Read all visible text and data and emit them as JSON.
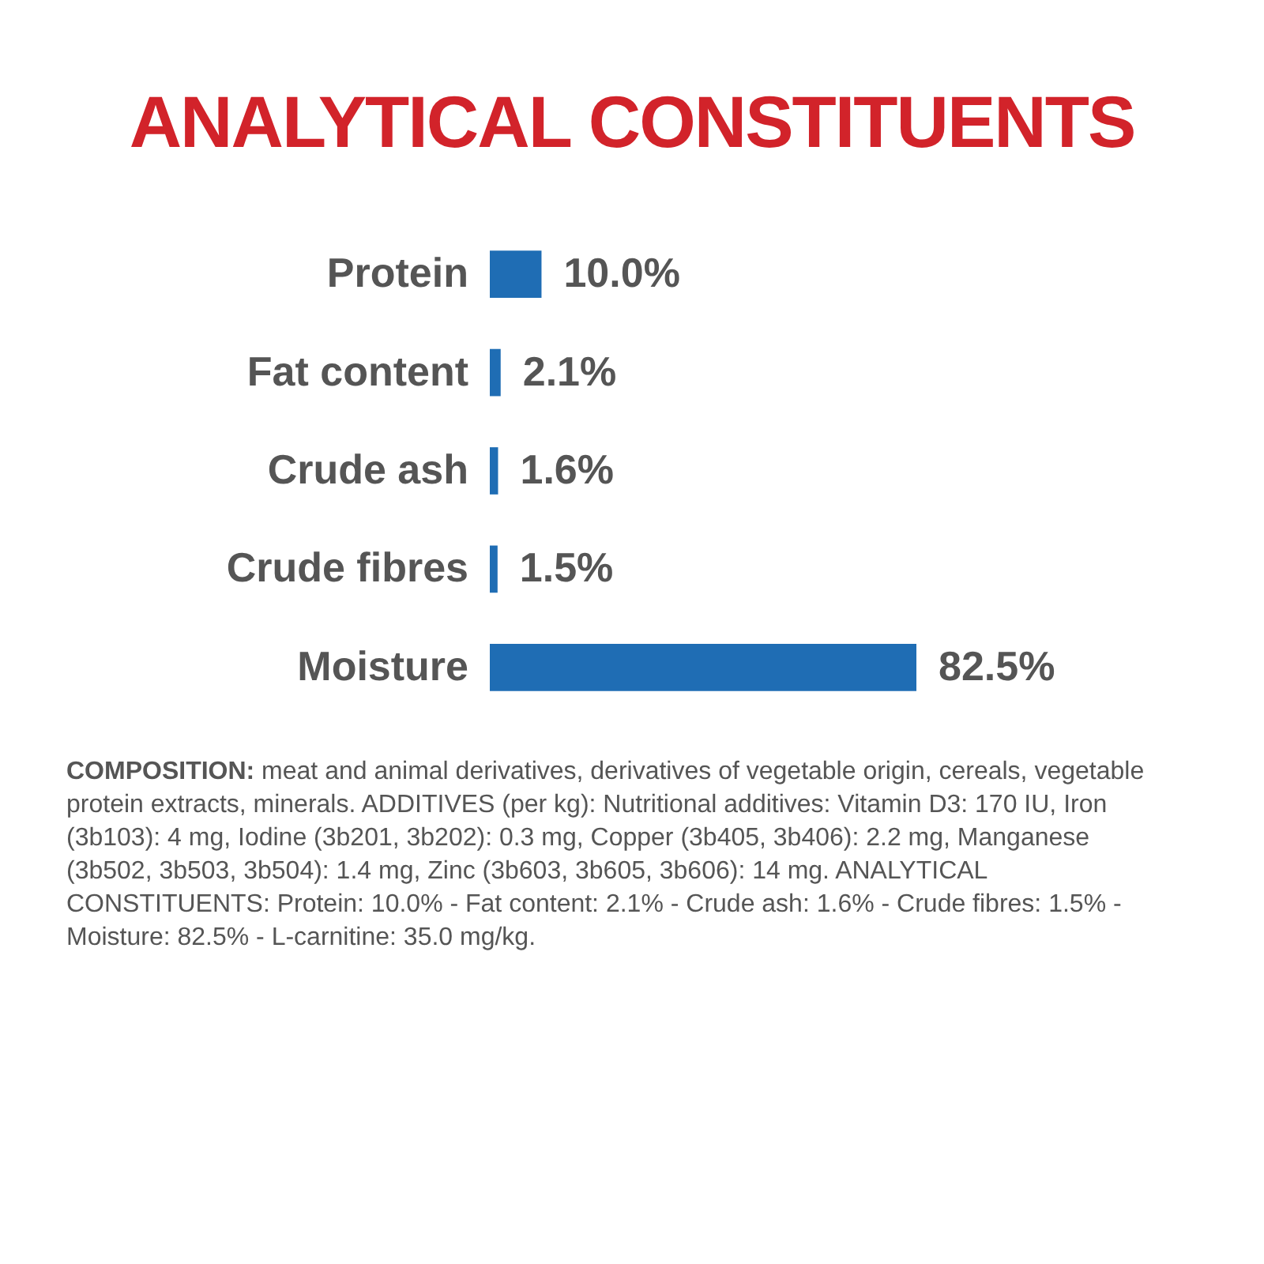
{
  "chart_data": {
    "type": "bar",
    "orientation": "horizontal",
    "title": "ANALYTICAL CONSTITUENTS",
    "categories": [
      "Protein",
      "Fat content",
      "Crude ash",
      "Crude fibres",
      "Moisture"
    ],
    "values": [
      10.0,
      2.1,
      1.6,
      1.5,
      82.5
    ],
    "value_labels": [
      "10.0%",
      "2.1%",
      "1.6%",
      "1.5%",
      "82.5%"
    ],
    "color": "#1f6db4",
    "annotations": [
      "COMPOSITION: meat and animal derivatives, derivatives of vegetable origin, cereals, vegetable protein extracts, minerals. ADDITIVES (per kg): Nutritional additives: Vitamin D3: 170 IU, Iron (3b103): 4 mg, Iodine (3b201, 3b202): 0.3 mg, Copper (3b405, 3b406): 2.2 mg, Manganese (3b502, 3b503, 3b504): 1.4 mg, Zinc (3b603, 3b605, 3b606): 14 mg. ANALYTICAL CONSTITUENTS: Protein: 10.0% - Fat content: 2.1% - Crude ash: 1.6% - Crude fibres: 1.5% - Moisture: 82.5% - L-carnitine: 35.0 mg/kg."
    ]
  }
}
